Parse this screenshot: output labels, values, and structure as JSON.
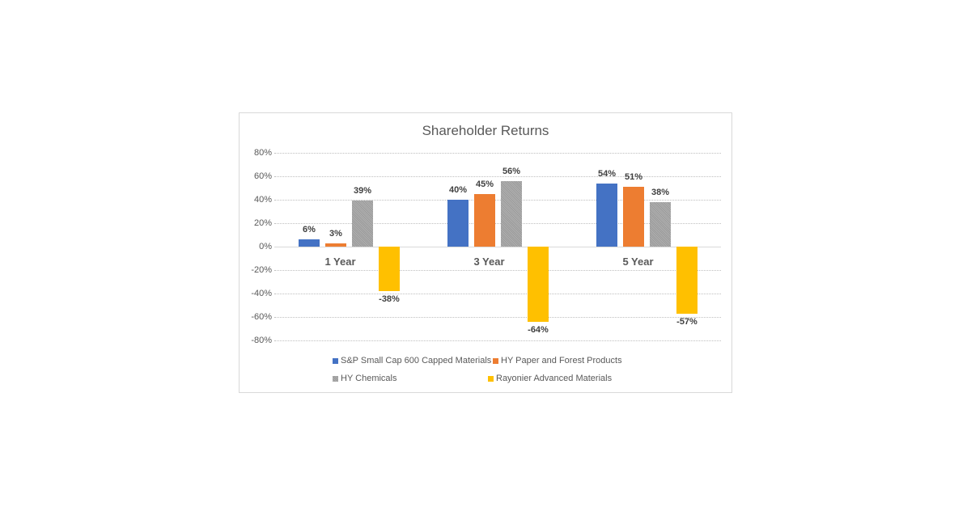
{
  "chart_data": {
    "type": "bar",
    "title": "Shareholder Returns",
    "xlabel": "",
    "ylabel": "",
    "categories": [
      "1 Year",
      "3 Year",
      "5 Year"
    ],
    "series": [
      {
        "name": "S&P Small Cap 600 Capped Materials",
        "color": "#4472c4",
        "values": [
          6,
          40,
          54
        ],
        "labels": [
          "6%",
          "40%",
          "54%"
        ]
      },
      {
        "name": "HY Paper and Forest Products",
        "color": "#ed7d31",
        "values": [
          3,
          45,
          51
        ],
        "labels": [
          "3%",
          "45%",
          "51%"
        ]
      },
      {
        "name": "HY Chemicals",
        "color": "#a5a5a5",
        "pattern": "hatched",
        "values": [
          39,
          56,
          38
        ],
        "labels": [
          "39%",
          "56%",
          "38%"
        ]
      },
      {
        "name": "Rayonier Advanced Materials",
        "color": "#ffc000",
        "values": [
          -38,
          -64,
          -57
        ],
        "labels": [
          "-38%",
          "-64%",
          "-57%"
        ]
      }
    ],
    "ylim": [
      -80,
      80
    ],
    "yticks": [
      "80%",
      "60%",
      "40%",
      "20%",
      "0%",
      "-20%",
      "-40%",
      "-60%",
      "-80%"
    ],
    "grid": true,
    "legend_position": "bottom"
  }
}
